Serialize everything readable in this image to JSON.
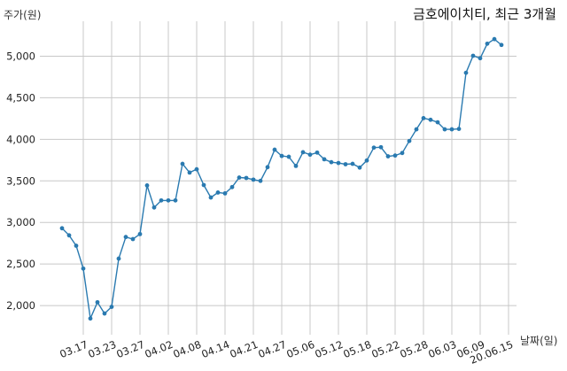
{
  "chart_data": {
    "type": "line",
    "title": "금호에이치티, 최근 3개월",
    "ylabel": "주가(원)",
    "xlabel": "날짜(일)",
    "ylim": [
      1650,
      5420
    ],
    "yticks": [
      2000,
      2500,
      3000,
      3500,
      4000,
      4500,
      5000
    ],
    "ytick_labels": [
      "2,000",
      "2,500",
      "3,000",
      "3,500",
      "4,000",
      "4,500",
      "5,000"
    ],
    "xtick_labels": [
      "03.17",
      "03.23",
      "03.27",
      "04.02",
      "04.08",
      "04.14",
      "04.21",
      "04.27",
      "05.06",
      "05.12",
      "05.18",
      "05.22",
      "05.28",
      "06.03",
      "06.09",
      "20.06.15"
    ],
    "xtick_indices": [
      3,
      7,
      11,
      15,
      19,
      23,
      27,
      31,
      35,
      39,
      43,
      47,
      51,
      55,
      59,
      63
    ],
    "series": [
      {
        "color": "#2a7ab0",
        "values": [
          2930,
          2845,
          2720,
          2445,
          1845,
          2040,
          1905,
          1985,
          2565,
          2825,
          2800,
          2860,
          3445,
          3180,
          3265,
          3265,
          3265,
          3705,
          3600,
          3640,
          3450,
          3300,
          3360,
          3350,
          3425,
          3540,
          3535,
          3515,
          3500,
          3665,
          3875,
          3800,
          3790,
          3680,
          3845,
          3815,
          3840,
          3760,
          3725,
          3715,
          3700,
          3705,
          3660,
          3745,
          3900,
          3905,
          3795,
          3805,
          3835,
          3980,
          4120,
          4255,
          4235,
          4205,
          4120,
          4120,
          4125,
          4800,
          5005,
          4975,
          5150,
          5205,
          5135
        ]
      }
    ],
    "grid": true
  }
}
